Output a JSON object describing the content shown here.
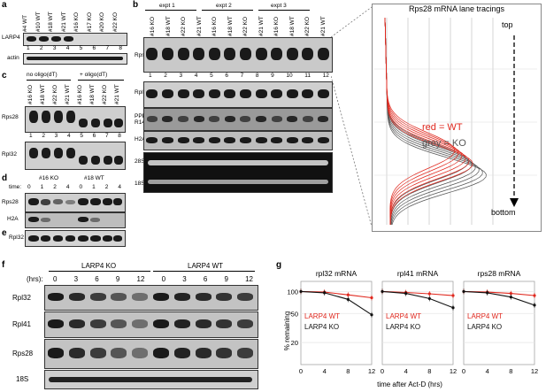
{
  "panel_a": {
    "letter": "a",
    "lanes": [
      "#4 WT",
      "#10 WT",
      "#18 WT",
      "#21 WT",
      "#16 KO",
      "#17 KO",
      "#20 KO",
      "#22 KO"
    ],
    "rows": [
      "LARP4",
      "actin"
    ],
    "numbers": [
      "1",
      "2",
      "3",
      "4",
      "5",
      "6",
      "7",
      "8"
    ]
  },
  "panel_b": {
    "letter": "b",
    "groups": [
      "expt 1",
      "expt 2",
      "expt 3"
    ],
    "lanes": [
      "#16 KO",
      "#18 WT",
      "#22 KO",
      "#21 WT",
      "#16 KO",
      "#18 WT",
      "#22 KO",
      "#21 WT",
      "#16 KO",
      "#18 WT",
      "#22 KO",
      "#21 WT"
    ],
    "numbers": [
      "1",
      "2",
      "3",
      "4",
      "5",
      "6",
      "7",
      "8",
      "9",
      "10",
      "11",
      "12"
    ],
    "rows": [
      "Rps28",
      "Rpl32",
      "PPP1\nR14A",
      "H2A",
      "28S",
      "18S"
    ]
  },
  "panel_c": {
    "letter": "c",
    "groups": [
      "no oligo(dT)",
      "+ oligo(dT)"
    ],
    "lanes": [
      "#16 KO",
      "#18 WT",
      "#22 KO",
      "#21 WT",
      "#16 KO",
      "#18 WT",
      "#22 KO",
      "#21 WT"
    ],
    "numbers": [
      "1",
      "2",
      "3",
      "4",
      "5",
      "6",
      "7",
      "8"
    ],
    "rows": [
      "Rps28",
      "Rpl32"
    ]
  },
  "panel_d": {
    "letter": "d",
    "groups": [
      "#16 KO",
      "#18 WT"
    ],
    "time_label": "time:",
    "times": [
      "0",
      "1",
      "2",
      "4",
      "0",
      "1",
      "2",
      "4"
    ],
    "rows": [
      "Rps28",
      "H2A"
    ]
  },
  "panel_e": {
    "letter": "e",
    "rows": [
      "Rpl32"
    ]
  },
  "tracings": {
    "title": "Rps28 mRNA lane tracings",
    "top": "top",
    "bottom": "bottom",
    "legend_wt": "red = WT",
    "legend_ko": "grey = KO",
    "colors": {
      "wt": "#e0281e",
      "ko": "#555555"
    }
  },
  "panel_f": {
    "letter": "f",
    "hrs_label": "(hrs):",
    "groups": [
      "LARP4 KO",
      "LARP4 WT"
    ],
    "times": [
      "0",
      "3",
      "6",
      "9",
      "12",
      "0",
      "3",
      "6",
      "9",
      "12"
    ],
    "rows": [
      "Rpl32",
      "Rpl41",
      "Rps28",
      "18S"
    ]
  },
  "panel_g": {
    "letter": "g",
    "ylabel": "% remaining",
    "xlabel": "time after Act-D (hrs)",
    "chart_data": [
      {
        "type": "line",
        "title": "rpl32 mRNA",
        "x": [
          0,
          4,
          8,
          12
        ],
        "ylim": [
          10,
          110
        ],
        "yticks": [
          "100",
          "50",
          "20"
        ],
        "xticks": [
          "0",
          "4",
          "8",
          "12"
        ],
        "series": [
          {
            "name": "LARP4 WT",
            "color": "#e0281e",
            "values": [
              100,
              98,
              90,
              82
            ]
          },
          {
            "name": "LARP4 KO",
            "color": "#111111",
            "values": [
              100,
              96,
              78,
              48
            ]
          }
        ]
      },
      {
        "type": "line",
        "title": "rpl41 mRNA",
        "x": [
          0,
          4,
          8,
          12
        ],
        "ylim": [
          10,
          110
        ],
        "yticks": [
          "100",
          "50",
          "20"
        ],
        "xticks": [
          "0",
          "4",
          "8",
          "12"
        ],
        "series": [
          {
            "name": "LARP4 WT",
            "color": "#e0281e",
            "values": [
              100,
              97,
              93,
              88
            ]
          },
          {
            "name": "LARP4 KO",
            "color": "#111111",
            "values": [
              100,
              94,
              80,
              60
            ]
          }
        ]
      },
      {
        "type": "line",
        "title": "rps28 mRNA",
        "x": [
          0,
          4,
          8,
          12
        ],
        "ylim": [
          10,
          110
        ],
        "yticks": [
          "100",
          "50",
          "20"
        ],
        "xticks": [
          "0",
          "4",
          "8",
          "12"
        ],
        "series": [
          {
            "name": "LARP4 WT",
            "color": "#e0281e",
            "values": [
              100,
              98,
              94,
              88
            ]
          },
          {
            "name": "LARP4 KO",
            "color": "#111111",
            "values": [
              100,
              96,
              84,
              65
            ]
          }
        ]
      }
    ]
  }
}
